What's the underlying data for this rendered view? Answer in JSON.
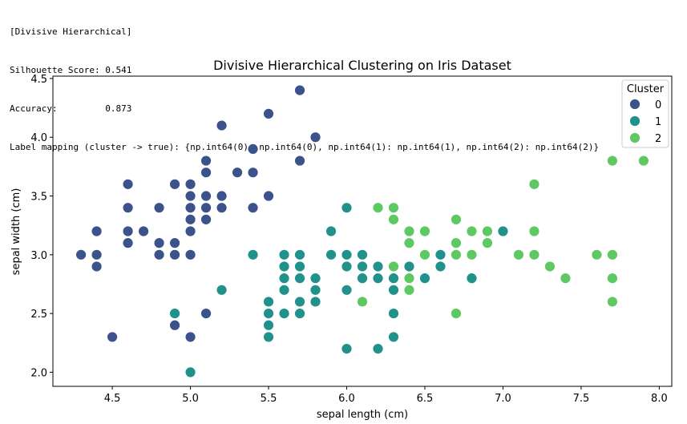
{
  "console": {
    "lines": [
      "[Divisive Hierarchical]",
      "Silhouette Score: 0.541",
      "Accuracy:         0.873",
      "Label mapping (cluster -> true): {np.int64(0): np.int64(0), np.int64(1): np.int64(1), np.int64(2): np.int64(2)}"
    ]
  },
  "chart_data": {
    "type": "scatter",
    "title": "Divisive Hierarchical Clustering on Iris Dataset",
    "xlabel": "sepal length (cm)",
    "ylabel": "sepal width (cm)",
    "xlim": [
      4.12,
      8.08
    ],
    "ylim": [
      1.88,
      4.52
    ],
    "xticks": [
      "4.5",
      "5.0",
      "5.5",
      "6.0",
      "6.5",
      "7.0",
      "7.5",
      "8.0"
    ],
    "yticks": [
      "2.0",
      "2.5",
      "3.0",
      "3.5",
      "4.0",
      "4.5"
    ],
    "grid": false,
    "legend": {
      "title": "Cluster",
      "placement": "top-right"
    },
    "series": [
      {
        "name": "0",
        "color": "#3b528b",
        "points": [
          [
            4.3,
            3.0
          ],
          [
            4.4,
            3.0
          ],
          [
            4.4,
            2.9
          ],
          [
            4.4,
            3.2
          ],
          [
            4.5,
            2.3
          ],
          [
            4.6,
            3.1
          ],
          [
            4.6,
            3.2
          ],
          [
            4.6,
            3.4
          ],
          [
            4.6,
            3.6
          ],
          [
            4.7,
            3.2
          ],
          [
            4.8,
            3.0
          ],
          [
            4.8,
            3.1
          ],
          [
            4.8,
            3.4
          ],
          [
            4.9,
            2.4
          ],
          [
            4.9,
            3.0
          ],
          [
            4.9,
            3.1
          ],
          [
            4.9,
            3.6
          ],
          [
            5.0,
            2.3
          ],
          [
            5.0,
            3.0
          ],
          [
            5.0,
            3.2
          ],
          [
            5.0,
            3.3
          ],
          [
            5.0,
            3.4
          ],
          [
            5.0,
            3.5
          ],
          [
            5.0,
            3.6
          ],
          [
            5.1,
            2.5
          ],
          [
            5.1,
            3.3
          ],
          [
            5.1,
            3.4
          ],
          [
            5.1,
            3.5
          ],
          [
            5.1,
            3.7
          ],
          [
            5.1,
            3.8
          ],
          [
            5.2,
            3.4
          ],
          [
            5.2,
            3.5
          ],
          [
            5.2,
            4.1
          ],
          [
            5.3,
            3.7
          ],
          [
            5.4,
            3.4
          ],
          [
            5.4,
            3.7
          ],
          [
            5.4,
            3.9
          ],
          [
            5.5,
            3.5
          ],
          [
            5.5,
            4.2
          ],
          [
            5.7,
            3.8
          ],
          [
            5.7,
            4.4
          ],
          [
            5.8,
            4.0
          ]
        ]
      },
      {
        "name": "1",
        "color": "#21918c",
        "points": [
          [
            4.9,
            2.5
          ],
          [
            5.0,
            2.0
          ],
          [
            5.2,
            2.7
          ],
          [
            5.4,
            3.0
          ],
          [
            5.5,
            2.3
          ],
          [
            5.5,
            2.4
          ],
          [
            5.5,
            2.5
          ],
          [
            5.5,
            2.6
          ],
          [
            5.6,
            2.5
          ],
          [
            5.6,
            2.7
          ],
          [
            5.6,
            2.8
          ],
          [
            5.6,
            2.9
          ],
          [
            5.6,
            3.0
          ],
          [
            5.7,
            2.5
          ],
          [
            5.7,
            2.6
          ],
          [
            5.7,
            2.8
          ],
          [
            5.7,
            2.9
          ],
          [
            5.7,
            3.0
          ],
          [
            5.8,
            2.6
          ],
          [
            5.8,
            2.7
          ],
          [
            5.8,
            2.8
          ],
          [
            5.9,
            3.0
          ],
          [
            5.9,
            3.2
          ],
          [
            6.0,
            2.2
          ],
          [
            6.0,
            2.7
          ],
          [
            6.0,
            2.9
          ],
          [
            6.0,
            3.0
          ],
          [
            6.0,
            3.4
          ],
          [
            6.1,
            2.8
          ],
          [
            6.1,
            2.9
          ],
          [
            6.1,
            3.0
          ],
          [
            6.2,
            2.2
          ],
          [
            6.2,
            2.8
          ],
          [
            6.2,
            2.9
          ],
          [
            6.3,
            2.3
          ],
          [
            6.3,
            2.5
          ],
          [
            6.3,
            2.7
          ],
          [
            6.3,
            2.8
          ],
          [
            6.4,
            2.9
          ],
          [
            6.5,
            2.8
          ],
          [
            6.6,
            2.9
          ],
          [
            6.6,
            3.0
          ],
          [
            6.8,
            2.8
          ],
          [
            7.0,
            3.2
          ]
        ]
      },
      {
        "name": "2",
        "color": "#5ec962",
        "points": [
          [
            6.1,
            2.6
          ],
          [
            6.2,
            3.4
          ],
          [
            6.3,
            2.9
          ],
          [
            6.3,
            3.3
          ],
          [
            6.3,
            3.4
          ],
          [
            6.4,
            2.7
          ],
          [
            6.4,
            2.8
          ],
          [
            6.4,
            3.1
          ],
          [
            6.4,
            3.2
          ],
          [
            6.5,
            3.0
          ],
          [
            6.5,
            3.2
          ],
          [
            6.7,
            2.5
          ],
          [
            6.7,
            3.0
          ],
          [
            6.7,
            3.1
          ],
          [
            6.7,
            3.3
          ],
          [
            6.8,
            3.0
          ],
          [
            6.8,
            3.2
          ],
          [
            6.9,
            3.1
          ],
          [
            6.9,
            3.2
          ],
          [
            7.1,
            3.0
          ],
          [
            7.2,
            3.0
          ],
          [
            7.2,
            3.2
          ],
          [
            7.2,
            3.6
          ],
          [
            7.3,
            2.9
          ],
          [
            7.4,
            2.8
          ],
          [
            7.6,
            3.0
          ],
          [
            7.7,
            2.6
          ],
          [
            7.7,
            2.8
          ],
          [
            7.7,
            3.0
          ],
          [
            7.7,
            3.8
          ],
          [
            7.9,
            3.8
          ]
        ]
      }
    ]
  }
}
